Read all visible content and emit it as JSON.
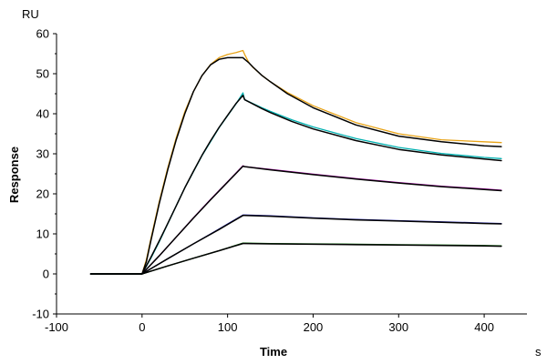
{
  "chart_data": {
    "type": "line",
    "title": "",
    "xlabel": "Time",
    "ylabel": "Response",
    "x_unit": "s",
    "y_unit": "RU",
    "xlim": [
      -100,
      450
    ],
    "ylim": [
      -10,
      60
    ],
    "xticks": [
      -100,
      0,
      100,
      200,
      300,
      400
    ],
    "yticks": [
      -10,
      0,
      10,
      20,
      30,
      40,
      50,
      60
    ],
    "grid": false,
    "legend": "none",
    "series": [
      {
        "color": "#e8a317",
        "role": "measured",
        "x": [
          -60,
          0,
          5,
          10,
          20,
          30,
          40,
          50,
          60,
          70,
          80,
          90,
          100,
          110,
          118,
          120,
          125,
          130,
          140,
          150,
          170,
          200,
          250,
          300,
          350,
          400,
          420
        ],
        "y": [
          0,
          0,
          3.5,
          8.5,
          18,
          26.5,
          34,
          40.5,
          45.5,
          49.5,
          52.3,
          54,
          54.8,
          55.3,
          55.8,
          54.8,
          52.7,
          51.5,
          49.6,
          48,
          45.3,
          42,
          37.8,
          35,
          33.5,
          33,
          32.8
        ]
      },
      {
        "color": "#000000",
        "role": "fit",
        "x": [
          -60,
          0,
          5,
          10,
          20,
          30,
          40,
          50,
          60,
          70,
          80,
          90,
          100,
          110,
          118,
          120,
          125,
          130,
          140,
          150,
          170,
          200,
          250,
          300,
          350,
          400,
          420
        ],
        "y": [
          0,
          0,
          3,
          8,
          17.5,
          26,
          33.5,
          40,
          45.5,
          49.5,
          52.2,
          53.6,
          54,
          54,
          54,
          53.6,
          52.7,
          51.6,
          49.6,
          48,
          45,
          41.5,
          37.2,
          34.4,
          33,
          32,
          31.8
        ]
      },
      {
        "color": "#00b0b0",
        "role": "measured",
        "x": [
          -60,
          0,
          10,
          20,
          30,
          40,
          50,
          60,
          70,
          80,
          90,
          100,
          110,
          118,
          120,
          130,
          140,
          150,
          175,
          200,
          250,
          300,
          350,
          400,
          420
        ],
        "y": [
          0,
          0,
          3.8,
          8,
          12.5,
          17,
          21.5,
          25.5,
          29.5,
          33,
          36.5,
          39.5,
          42.5,
          45.2,
          43.5,
          42.5,
          41.5,
          40.6,
          38.5,
          36.7,
          33.8,
          31.6,
          30.1,
          29.1,
          28.8
        ]
      },
      {
        "color": "#000000",
        "role": "fit",
        "x": [
          -60,
          0,
          10,
          20,
          30,
          40,
          50,
          60,
          70,
          80,
          90,
          100,
          110,
          118,
          120,
          130,
          140,
          150,
          175,
          200,
          250,
          300,
          350,
          400,
          420
        ],
        "y": [
          0,
          0,
          4,
          8.2,
          12.6,
          17,
          21.5,
          25.6,
          29.6,
          33.2,
          36.6,
          39.6,
          42.6,
          44.6,
          43.5,
          42.4,
          41.3,
          40.3,
          38.1,
          36.2,
          33.3,
          31.1,
          29.7,
          28.7,
          28.3
        ]
      },
      {
        "color": "#b000b0",
        "role": "measured",
        "x": [
          -60,
          0,
          20,
          40,
          60,
          80,
          100,
          118,
          120,
          150,
          200,
          250,
          300,
          350,
          400,
          420
        ],
        "y": [
          0,
          0,
          4.5,
          9.2,
          14,
          18.6,
          23,
          27,
          26.8,
          26.1,
          24.9,
          23.8,
          22.8,
          21.9,
          21.2,
          20.9
        ]
      },
      {
        "color": "#000000",
        "role": "fit",
        "x": [
          -60,
          0,
          20,
          40,
          60,
          80,
          100,
          118,
          120,
          150,
          200,
          250,
          300,
          350,
          400,
          420
        ],
        "y": [
          0,
          0,
          4.5,
          9.2,
          13.9,
          18.5,
          22.9,
          26.9,
          26.8,
          26,
          24.8,
          23.7,
          22.7,
          21.8,
          21.1,
          20.8
        ]
      },
      {
        "color": "#1a1aa8",
        "role": "measured",
        "x": [
          -60,
          0,
          30,
          60,
          90,
          118,
          120,
          150,
          200,
          250,
          300,
          350,
          400,
          420
        ],
        "y": [
          0,
          0,
          3.8,
          7.5,
          11.2,
          14.7,
          14.7,
          14.5,
          14,
          13.6,
          13.3,
          13,
          12.7,
          12.6
        ]
      },
      {
        "color": "#000000",
        "role": "fit",
        "x": [
          -60,
          0,
          30,
          60,
          90,
          118,
          120,
          150,
          200,
          250,
          300,
          350,
          400,
          420
        ],
        "y": [
          0,
          0,
          3.8,
          7.5,
          11.1,
          14.6,
          14.6,
          14.4,
          13.9,
          13.5,
          13.2,
          12.9,
          12.6,
          12.5
        ]
      },
      {
        "color": "#006400",
        "role": "measured",
        "x": [
          -60,
          0,
          30,
          60,
          90,
          118,
          120,
          150,
          200,
          250,
          300,
          350,
          400,
          420
        ],
        "y": [
          0,
          0,
          2,
          3.9,
          5.8,
          7.7,
          7.7,
          7.6,
          7.5,
          7.4,
          7.3,
          7.2,
          7.1,
          7
        ]
      },
      {
        "color": "#000000",
        "role": "fit",
        "x": [
          -60,
          0,
          30,
          60,
          90,
          118,
          120,
          150,
          200,
          250,
          300,
          350,
          400,
          420
        ],
        "y": [
          0,
          0,
          2,
          3.9,
          5.8,
          7.6,
          7.6,
          7.5,
          7.4,
          7.3,
          7.2,
          7.1,
          7,
          6.9
        ]
      }
    ]
  }
}
